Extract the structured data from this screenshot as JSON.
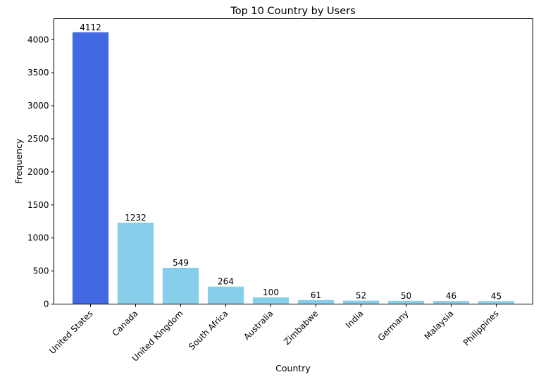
{
  "chart_data": {
    "type": "bar",
    "title": "Top 10 Country by Users",
    "xlabel": "Country",
    "ylabel": "Frequency",
    "categories": [
      "United States",
      "Canada",
      "United Kingdom",
      "South Africa",
      "Australia",
      "Zimbabwe",
      "India",
      "Germany",
      "Malaysia",
      "Philippines"
    ],
    "values": [
      4112,
      1232,
      549,
      264,
      100,
      61,
      52,
      50,
      46,
      45
    ],
    "ylim": [
      0,
      4317.6
    ],
    "yticks": [
      0,
      500,
      1000,
      1500,
      2000,
      2500,
      3000,
      3500,
      4000
    ],
    "grid": false,
    "highlight_index": 0,
    "colors": {
      "highlight": "#4169e1",
      "default": "#87ceeb"
    }
  }
}
